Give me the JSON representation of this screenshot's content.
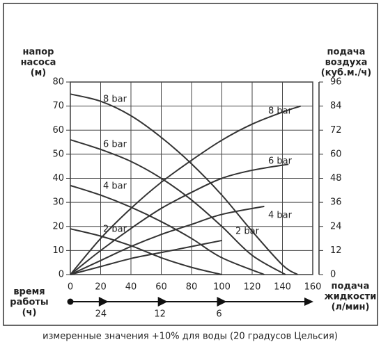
{
  "chart_data": {
    "type": "line",
    "ylabel": [
      "напор",
      "насоса",
      "(м)"
    ],
    "y2label": [
      "подача",
      "воздуха",
      "(куб.м./ч)"
    ],
    "xlabel": [
      "подача",
      "жидкости",
      "(л/мин)"
    ],
    "note": "измеренные значения +10% для воды (20 градусов Цельсия)",
    "xlim": [
      0,
      160
    ],
    "xticks": [
      0,
      20,
      40,
      60,
      80,
      100,
      120,
      140,
      160
    ],
    "ylim": [
      0,
      80
    ],
    "yticks": [
      0,
      10,
      20,
      30,
      40,
      50,
      60,
      70,
      80
    ],
    "y2lim": [
      0,
      96
    ],
    "y2ticks": [
      0,
      12,
      24,
      36,
      48,
      60,
      72,
      84,
      96
    ],
    "grid": true,
    "series": [
      {
        "name": "8 bar",
        "color": "#333333",
        "x": [
          0,
          20,
          40,
          60,
          80,
          100,
          120,
          140,
          150
        ],
        "values": [
          75,
          72,
          66,
          57,
          46,
          33,
          18,
          4,
          0
        ]
      },
      {
        "name": "6 bar",
        "color": "#333333",
        "x": [
          0,
          20,
          40,
          60,
          80,
          100,
          120,
          142
        ],
        "values": [
          56,
          52,
          47,
          40,
          31,
          20,
          8,
          0
        ]
      },
      {
        "name": "4 bar",
        "color": "#333333",
        "x": [
          0,
          20,
          40,
          60,
          80,
          100,
          128
        ],
        "values": [
          37,
          33,
          28,
          22,
          15,
          7,
          0
        ]
      },
      {
        "name": "2 bar",
        "color": "#333333",
        "x": [
          0,
          20,
          40,
          60,
          80,
          100
        ],
        "values": [
          19,
          16,
          12,
          7,
          3,
          0
        ]
      },
      {
        "name": "8 bar",
        "color": "#333333",
        "axis": "y2",
        "x": [
          0,
          20,
          40,
          60,
          80,
          100,
          120,
          140,
          152
        ],
        "values": [
          0,
          18,
          33,
          46,
          57,
          67,
          75,
          81,
          84
        ]
      },
      {
        "name": "6 bar",
        "color": "#333333",
        "axis": "y2",
        "x": [
          0,
          20,
          40,
          60,
          80,
          100,
          120,
          144
        ],
        "values": [
          0,
          12,
          23,
          33,
          41,
          48,
          52,
          55
        ]
      },
      {
        "name": "4 bar",
        "color": "#333333",
        "axis": "y2",
        "x": [
          0,
          20,
          40,
          60,
          80,
          100,
          128
        ],
        "values": [
          0,
          7,
          14,
          20,
          25,
          30,
          34
        ]
      },
      {
        "name": "2 bar",
        "color": "#333333",
        "axis": "y2",
        "x": [
          0,
          20,
          40,
          60,
          80,
          100
        ],
        "values": [
          0,
          4,
          8,
          11,
          14,
          17
        ]
      }
    ],
    "time_axis": {
      "title": [
        "время",
        "работы",
        "(ч)"
      ],
      "marks": [
        {
          "x": 22,
          "value": 24
        },
        {
          "x": 61,
          "value": 12
        },
        {
          "x": 100,
          "value": 6
        }
      ]
    }
  }
}
